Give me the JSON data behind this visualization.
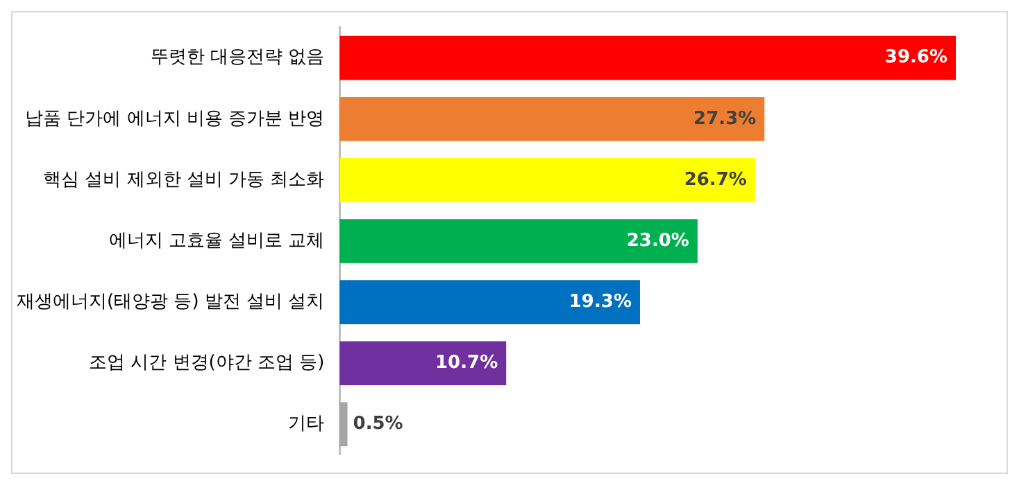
{
  "chart_data": {
    "type": "bar",
    "orientation": "horizontal",
    "categories": [
      "뚜렷한 대응전략 없음",
      "납품 단가에 에너지 비용 증가분 반영",
      "핵심 설비 제외한 설비 가동 최소화",
      "에너지 고효율 설비로 교체",
      "재생에너지(태양광 등) 발전 설비 설치",
      "조업 시간 변경(야간 조업 등)",
      "기타"
    ],
    "values": [
      39.6,
      27.3,
      26.7,
      23.0,
      19.3,
      10.7,
      0.5
    ],
    "colors": [
      "#ff0000",
      "#ed7d31",
      "#ffff00",
      "#00b050",
      "#0070c0",
      "#7030a0",
      "#a6a6a6"
    ],
    "value_labels": [
      "39.6%",
      "27.3%",
      "26.7%",
      "23.0%",
      "19.3%",
      "10.7%",
      "0.5%"
    ],
    "tick_labels": "y",
    "grid": false,
    "legend": false
  }
}
